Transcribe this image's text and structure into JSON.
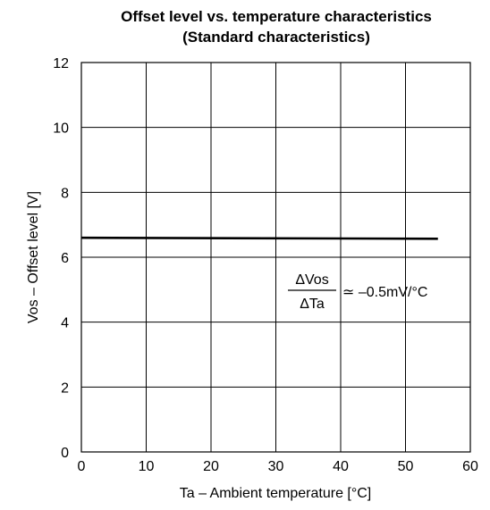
{
  "chart_data": {
    "type": "line",
    "title": "Offset level vs. temperature characteristics",
    "subtitle": "(Standard characteristics)",
    "xlabel": "Ta – Ambient temperature [°C]",
    "ylabel": "Vos – Offset level [V]",
    "xlim": [
      0,
      60
    ],
    "ylim": [
      0,
      12
    ],
    "x_ticks": [
      0,
      10,
      20,
      30,
      40,
      50,
      60
    ],
    "y_ticks": [
      0,
      2,
      4,
      6,
      8,
      10,
      12
    ],
    "grid": true,
    "series": [
      {
        "x": [
          0,
          55
        ],
        "y": [
          6.6,
          6.57
        ],
        "color": "#000000"
      }
    ],
    "annotation": {
      "numerator": "ΔVos",
      "denominator": "ΔTa",
      "relation": "≃ –0.5mV/°C"
    }
  }
}
